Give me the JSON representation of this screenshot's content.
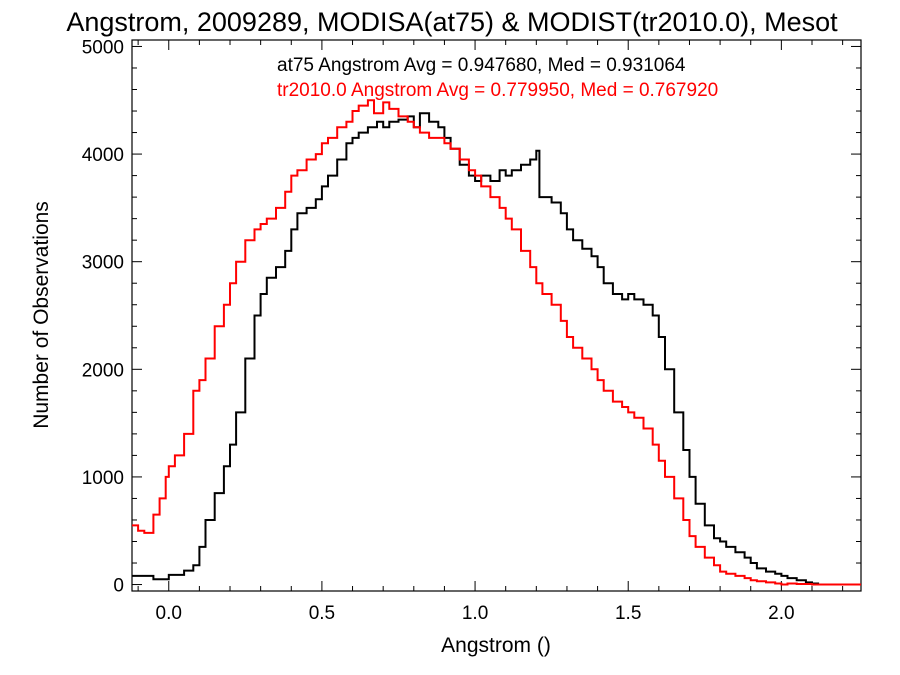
{
  "chart_data": {
    "type": "line",
    "title": "Angstrom, 2009289, MODISA(at75) & MODIST(tr2010.0), Mesot",
    "xlabel": "Angstrom ()",
    "ylabel": "Number of Observations",
    "xlim": [
      -0.12,
      2.26
    ],
    "ylim": [
      -60,
      5060
    ],
    "x_ticks": [
      0.0,
      0.5,
      1.0,
      1.5,
      2.0
    ],
    "x_tick_labels": [
      "0.0",
      "0.5",
      "1.0",
      "1.5",
      "2.0"
    ],
    "y_ticks": [
      0,
      1000,
      2000,
      3000,
      4000,
      5000
    ],
    "y_tick_labels": [
      "0",
      "1000",
      "2000",
      "3000",
      "4000",
      "5000"
    ],
    "grid": false,
    "annotations": [
      {
        "text": "at75 Angstrom Avg = 0.947680, Med = 0.931064",
        "color": "#000000"
      },
      {
        "text": "tr2010.0 Angstrom Avg = 0.779950, Med = 0.767920",
        "color": "#ff0000"
      }
    ],
    "series": [
      {
        "color": "#000000",
        "x": [
          -0.12,
          -0.05,
          0.0,
          0.05,
          0.08,
          0.1,
          0.12,
          0.15,
          0.18,
          0.2,
          0.22,
          0.25,
          0.28,
          0.3,
          0.32,
          0.35,
          0.38,
          0.4,
          0.42,
          0.45,
          0.48,
          0.5,
          0.52,
          0.55,
          0.58,
          0.6,
          0.62,
          0.65,
          0.68,
          0.7,
          0.72,
          0.75,
          0.78,
          0.8,
          0.82,
          0.85,
          0.88,
          0.9,
          0.92,
          0.95,
          0.98,
          1.0,
          1.02,
          1.05,
          1.08,
          1.1,
          1.12,
          1.15,
          1.18,
          1.2,
          1.21,
          1.23,
          1.25,
          1.28,
          1.3,
          1.32,
          1.35,
          1.38,
          1.4,
          1.42,
          1.45,
          1.48,
          1.5,
          1.52,
          1.55,
          1.58,
          1.6,
          1.62,
          1.65,
          1.68,
          1.7,
          1.72,
          1.75,
          1.78,
          1.8,
          1.82,
          1.85,
          1.88,
          1.9,
          1.92,
          1.95,
          1.98,
          2.0,
          2.02,
          2.05,
          2.08,
          2.1,
          2.12,
          2.15,
          2.16
        ],
        "values": [
          80,
          50,
          90,
          130,
          180,
          350,
          600,
          850,
          1100,
          1300,
          1600,
          2100,
          2500,
          2700,
          2850,
          2950,
          3100,
          3300,
          3450,
          3500,
          3580,
          3700,
          3800,
          3950,
          4100,
          4150,
          4200,
          4250,
          4300,
          4250,
          4300,
          4320,
          4350,
          4250,
          4380,
          4300,
          4250,
          4150,
          4050,
          3900,
          3800,
          3750,
          3800,
          3750,
          3850,
          3800,
          3850,
          3900,
          3950,
          4030,
          3600,
          3600,
          3550,
          3450,
          3300,
          3200,
          3120,
          3050,
          2950,
          2800,
          2700,
          2650,
          2700,
          2650,
          2600,
          2500,
          2300,
          2000,
          1600,
          1250,
          1000,
          750,
          550,
          430,
          400,
          350,
          300,
          250,
          200,
          150,
          120,
          100,
          80,
          60,
          40,
          20,
          10,
          0,
          0,
          10
        ]
      },
      {
        "color": "#ff0000",
        "x": [
          -0.12,
          -0.1,
          -0.08,
          -0.05,
          -0.03,
          -0.01,
          0.0,
          0.02,
          0.05,
          0.08,
          0.1,
          0.12,
          0.15,
          0.18,
          0.2,
          0.22,
          0.25,
          0.28,
          0.3,
          0.32,
          0.35,
          0.38,
          0.4,
          0.42,
          0.45,
          0.48,
          0.5,
          0.52,
          0.55,
          0.58,
          0.6,
          0.62,
          0.65,
          0.67,
          0.7,
          0.72,
          0.75,
          0.78,
          0.8,
          0.82,
          0.85,
          0.88,
          0.9,
          0.92,
          0.95,
          0.98,
          1.0,
          1.02,
          1.05,
          1.08,
          1.1,
          1.12,
          1.15,
          1.18,
          1.2,
          1.22,
          1.25,
          1.28,
          1.3,
          1.32,
          1.35,
          1.38,
          1.4,
          1.42,
          1.45,
          1.48,
          1.5,
          1.52,
          1.55,
          1.58,
          1.6,
          1.62,
          1.65,
          1.68,
          1.7,
          1.72,
          1.75,
          1.78,
          1.8,
          1.82,
          1.85,
          1.88,
          1.9,
          1.92,
          1.95,
          1.98,
          2.0,
          2.02,
          2.05,
          2.1,
          2.15,
          2.2,
          2.26
        ],
        "values": [
          550,
          500,
          480,
          650,
          800,
          1000,
          1100,
          1200,
          1400,
          1800,
          1900,
          2100,
          2400,
          2600,
          2800,
          3000,
          3200,
          3300,
          3350,
          3400,
          3500,
          3650,
          3800,
          3850,
          3950,
          4000,
          4100,
          4150,
          4250,
          4300,
          4400,
          4450,
          4500,
          4380,
          4480,
          4420,
          4350,
          4300,
          4250,
          4200,
          4150,
          4150,
          4100,
          4050,
          3950,
          3850,
          3800,
          3700,
          3600,
          3500,
          3400,
          3300,
          3100,
          2950,
          2800,
          2700,
          2600,
          2450,
          2300,
          2200,
          2100,
          2000,
          1900,
          1800,
          1700,
          1650,
          1600,
          1550,
          1450,
          1300,
          1150,
          1000,
          800,
          600,
          450,
          350,
          250,
          180,
          120,
          100,
          80,
          60,
          40,
          30,
          20,
          10,
          0,
          10,
          5,
          0,
          0,
          0,
          0
        ]
      }
    ]
  }
}
